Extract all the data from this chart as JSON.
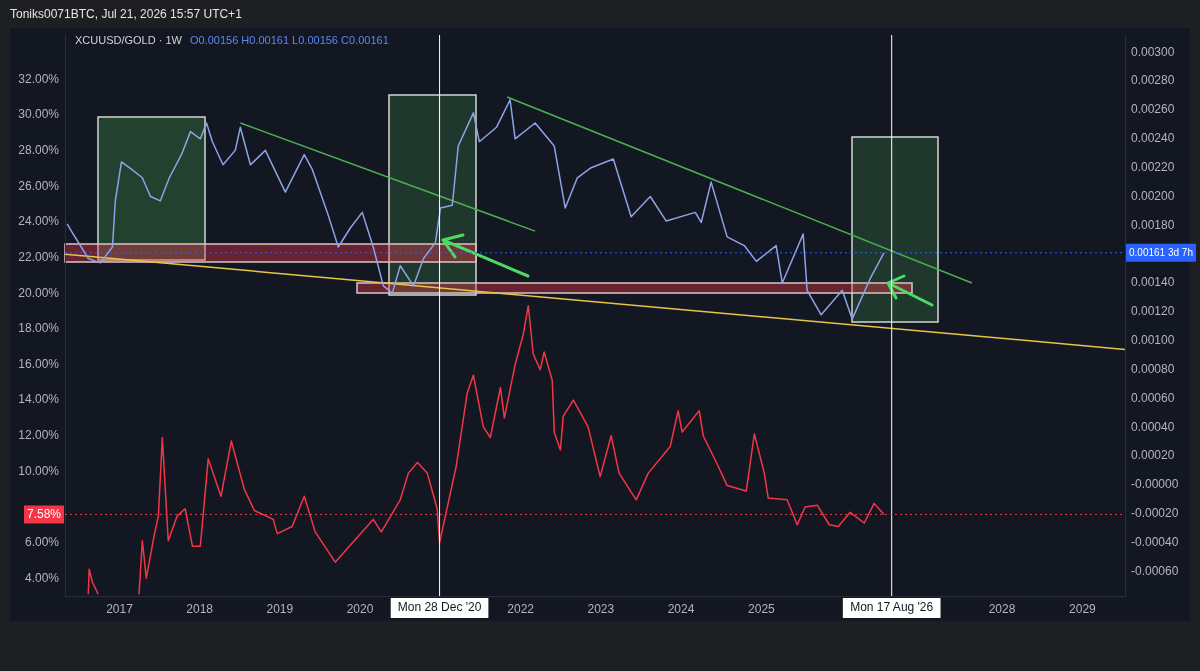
{
  "chart_data": {
    "type": "line",
    "title": "Toniks0071BTC, Jul 21, 2026 15:57 UTC+1",
    "subtitle": "XCUUSD/GOLD · 1W",
    "annotations": [
      "O0.00156 H0.00161 L0.00156 C0.00161"
    ],
    "marker": "none",
    "legend": false,
    "xlim": [
      "2016-04-28",
      "2029-07-14"
    ],
    "xticks": [
      {
        "value": "2017",
        "label": "2017"
      },
      {
        "value": "2018",
        "label": "2018"
      },
      {
        "value": "2019",
        "label": "2019"
      },
      {
        "value": "2020",
        "label": "2020"
      },
      {
        "value": "2022",
        "label": "2022"
      },
      {
        "value": "2023",
        "label": "2023"
      },
      {
        "value": "2024",
        "label": "2024"
      },
      {
        "value": "2025",
        "label": "2025"
      },
      {
        "value": "2028",
        "label": "2028"
      },
      {
        "value": "2029",
        "label": "2029"
      }
    ],
    "ylim": [
      3,
      34.5
    ],
    "yticks": [
      {
        "value": 4,
        "label": "4.00%"
      },
      {
        "value": 6,
        "label": "6.00%"
      },
      {
        "value": 10,
        "label": "10.00%"
      },
      {
        "value": 12,
        "label": "12.00%"
      },
      {
        "value": 14,
        "label": "14.00%"
      },
      {
        "value": 16,
        "label": "16.00%"
      },
      {
        "value": 18,
        "label": "18.00%"
      },
      {
        "value": 20,
        "label": "20.00%"
      },
      {
        "value": 22,
        "label": "22.00%"
      },
      {
        "value": 24,
        "label": "24.00%"
      },
      {
        "value": 26,
        "label": "26.00%"
      },
      {
        "value": 28,
        "label": "28.00%"
      },
      {
        "value": 30,
        "label": "30.00%"
      },
      {
        "value": 32,
        "label": "32.00%"
      }
    ],
    "y2lim": [
      -0.00077,
      0.00312
    ],
    "y2ticks": [
      {
        "value": -0.0006,
        "label": "-0.00060"
      },
      {
        "value": -0.0004,
        "label": "-0.00040"
      },
      {
        "value": -0.0002,
        "label": "-0.00020"
      },
      {
        "value": 0,
        "label": "-0.00000"
      },
      {
        "value": 0.0002,
        "label": "0.00020"
      },
      {
        "value": 0.0004,
        "label": "0.00040"
      },
      {
        "value": 0.0006,
        "label": "0.00060"
      },
      {
        "value": 0.0008,
        "label": "0.00080"
      },
      {
        "value": 0.001,
        "label": "0.00100"
      },
      {
        "value": 0.0012,
        "label": "0.00120"
      },
      {
        "value": 0.0014,
        "label": "0.00140"
      },
      {
        "value": 0.0018,
        "label": "0.00180"
      },
      {
        "value": 0.002,
        "label": "0.00200"
      },
      {
        "value": 0.0022,
        "label": "0.00220"
      },
      {
        "value": 0.0024,
        "label": "0.00240"
      },
      {
        "value": 0.0026,
        "label": "0.00260"
      },
      {
        "value": 0.0028,
        "label": "0.00280"
      },
      {
        "value": 0.003,
        "label": "0.00300"
      }
    ],
    "ref_lines": [
      {
        "axis": "x",
        "value": "2020-12-28",
        "label": "Mon 28 Dec '20",
        "color": "#ffffff"
      },
      {
        "axis": "x",
        "value": "2026-08-17",
        "label": "Mon 17 Aug '26",
        "color": "#ffffff"
      },
      {
        "axis": "y2",
        "value": 0.00161,
        "label": "0.00161 3d 7h",
        "color": "#2962ff",
        "line_style": "dotted"
      },
      {
        "axis": "y",
        "value": 7.58,
        "label": "7.58%",
        "color": "#f23645",
        "line_style": "dotted"
      }
    ],
    "series": [
      {
        "color": "#8ea2e6",
        "axis": "y2",
        "x": [
          "2016-05-08",
          "2016-05-27",
          "2016-07-11",
          "2016-08-12",
          "2016-10-06",
          "2016-11-30",
          "2016-12-13",
          "2017-01-10",
          "2017-02-24",
          "2017-04-15",
          "2017-05-22",
          "2017-07-06",
          "2017-08-16",
          "2017-10-10",
          "2017-11-20",
          "2018-01-04",
          "2018-02-01",
          "2018-02-28",
          "2018-04-17",
          "2018-06-12",
          "2018-07-05",
          "2018-08-20",
          "2018-10-27",
          "2019-01-26",
          "2019-04-22",
          "2019-05-28",
          "2019-08-05",
          "2019-09-24",
          "2019-11-17",
          "2020-01-11",
          "2020-03-01",
          "2020-04-16",
          "2020-05-27",
          "2020-07-02",
          "2020-08-31",
          "2020-10-16",
          "2020-12-09",
          "2021-01-01",
          "2021-02-24",
          "2021-03-23",
          "2021-05-31",
          "2021-06-27",
          "2021-09-13",
          "2021-11-14",
          "2021-12-07",
          "2022-03-08",
          "2022-06-03",
          "2022-07-23",
          "2022-09-16",
          "2022-11-18",
          "2023-02-27",
          "2023-05-19",
          "2023-08-14",
          "2023-10-26",
          "2024-03-06",
          "2024-04-02",
          "2024-05-17",
          "2024-07-29",
          "2024-10-15",
          "2024-12-09",
          "2025-03-09",
          "2025-04-06",
          "2025-07-10",
          "2025-07-28",
          "2025-09-30",
          "2026-01-04",
          "2026-02-18",
          "2026-05-11",
          "2026-07-13"
        ],
        "values": [
          0.00181,
          0.00176,
          0.00165,
          0.00157,
          0.00154,
          0.00165,
          0.00197,
          0.00224,
          0.00219,
          0.00213,
          0.002,
          0.00197,
          0.00213,
          0.00229,
          0.00245,
          0.0024,
          0.00251,
          0.00238,
          0.00222,
          0.00232,
          0.00248,
          0.00222,
          0.00232,
          0.00203,
          0.00229,
          0.00219,
          0.00189,
          0.00165,
          0.00178,
          0.00189,
          0.00165,
          0.00138,
          0.00133,
          0.00152,
          0.00138,
          0.00157,
          0.00168,
          0.00192,
          0.00194,
          0.00235,
          0.00258,
          0.00238,
          0.00248,
          0.00267,
          0.0024,
          0.00251,
          0.00235,
          0.00192,
          0.00213,
          0.0022,
          0.00226,
          0.00186,
          0.002,
          0.00183,
          0.00189,
          0.00182,
          0.0021,
          0.00172,
          0.00166,
          0.00155,
          0.00166,
          0.0014,
          0.00174,
          0.00135,
          0.00118,
          0.00135,
          0.00115,
          0.00143,
          0.00161
        ]
      },
      {
        "color": "#f23645",
        "x": [
          "2016-08-12",
          "2016-08-16",
          "2016-08-30",
          "2016-09-26",
          "2016-12-01",
          "2017-03-31",
          "2017-04-15",
          "2017-05-03",
          "2017-06-08",
          "2017-06-27",
          "2017-07-15",
          "2017-08-11",
          "2017-09-21",
          "2017-10-27",
          "2017-11-29",
          "2018-01-04",
          "2018-02-09",
          "2018-04-08",
          "2018-05-25",
          "2018-07-23",
          "2018-09-07",
          "2018-12-02",
          "2018-12-20",
          "2019-02-26",
          "2019-04-22",
          "2019-06-11",
          "2019-09-10",
          "2019-10-30",
          "2020-03-01",
          "2020-04-07",
          "2020-07-02",
          "2020-08-08",
          "2020-09-18",
          "2020-11-02",
          "2020-12-17",
          "2020-12-28",
          "2021-03-14",
          "2021-05-03",
          "2021-05-31",
          "2021-07-15",
          "2021-08-16",
          "2021-10-01",
          "2021-10-19",
          "2021-12-07",
          "2022-01-13",
          "2022-02-05",
          "2022-02-27",
          "2022-03-31",
          "2022-04-18",
          "2022-05-25",
          "2022-06-03",
          "2022-07-01",
          "2022-07-14",
          "2022-08-29",
          "2022-11-04",
          "2022-12-29",
          "2023-02-17",
          "2023-03-25",
          "2023-06-11",
          "2023-08-05",
          "2023-11-13",
          "2023-12-19",
          "2024-01-06",
          "2024-03-24",
          "2024-04-11",
          "2024-06-14",
          "2024-07-29",
          "2024-10-24",
          "2024-11-30",
          "2025-01-14",
          "2025-02-01",
          "2025-04-28",
          "2025-06-13",
          "2025-07-19",
          "2025-09-12",
          "2025-11-06",
          "2025-12-17",
          "2026-02-09",
          "2026-04-14",
          "2026-05-29",
          "2026-07-13"
        ],
        "values": [
          3.1,
          4.5,
          3.8,
          3.1,
          null,
          3.1,
          6.1,
          4.0,
          6.4,
          7.5,
          11.9,
          6.1,
          7.5,
          7.9,
          5.8,
          5.8,
          10.7,
          8.6,
          11.7,
          9.0,
          7.8,
          7.3,
          6.5,
          6.9,
          8.6,
          6.6,
          4.9,
          5.6,
          7.3,
          6.6,
          8.4,
          9.9,
          10.5,
          9.9,
          7.9,
          6.0,
          10.3,
          14.4,
          15.4,
          12.5,
          11.9,
          14.7,
          13.0,
          16.0,
          17.7,
          19.3,
          16.6,
          15.7,
          16.7,
          15.1,
          12.2,
          11.2,
          13.1,
          14.0,
          12.5,
          9.7,
          12.0,
          9.9,
          8.4,
          9.9,
          11.4,
          13.4,
          12.2,
          13.4,
          12.0,
          10.4,
          9.2,
          8.9,
          12.1,
          9.9,
          8.5,
          8.4,
          7.0,
          8.0,
          8.1,
          7.0,
          6.9,
          7.7,
          7.1,
          8.2,
          7.58
        ]
      },
      {
        "type": "line",
        "color": "#4caf50",
        "axis": "y2",
        "x": [
          "2018-07-05",
          "2022-03-08"
        ],
        "values": [
          0.00251,
          0.00176
        ]
      },
      {
        "type": "line",
        "color": "#4caf50",
        "axis": "y2",
        "x": [
          "2021-11-01",
          "2027-08-17"
        ],
        "values": [
          0.00269,
          0.0014
        ]
      },
      {
        "type": "line",
        "color": "#e8c547",
        "axis": "y2",
        "x": [
          "2016-04-28",
          "2029-07-14"
        ],
        "values": [
          0.0016,
          0.00094
        ]
      }
    ]
  }
}
